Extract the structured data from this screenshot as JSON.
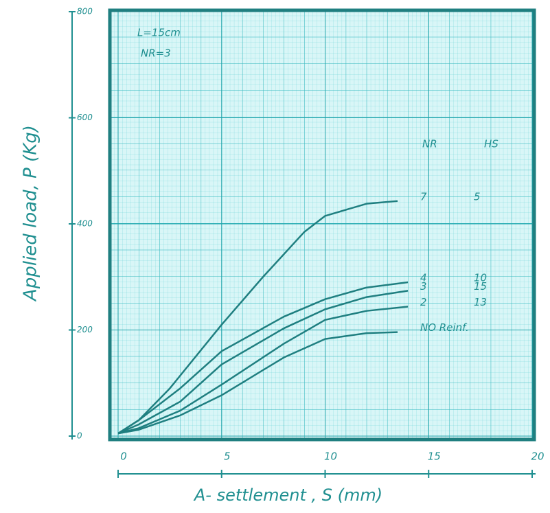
{
  "chart_data": {
    "type": "line",
    "xlabel": "A- settlement , S (mm)",
    "ylabel": "Applied load, P (Kg)",
    "annotations": [
      "L=15cm",
      "NR=3"
    ],
    "legend_headers": [
      "NR",
      "HS"
    ],
    "xlim": [
      0,
      20
    ],
    "xticks": [
      0,
      5,
      10,
      15,
      20
    ],
    "ylim": [
      0,
      800
    ],
    "yticks": [
      0,
      200,
      400,
      600,
      800
    ],
    "grid": true,
    "series": [
      {
        "name": "7",
        "hs": "5",
        "color": "#1f7f80",
        "x": [
          0,
          1,
          2.5,
          5,
          7,
          9,
          10,
          12,
          13.5
        ],
        "values": [
          5,
          30,
          90,
          210,
          300,
          385,
          415,
          438,
          443
        ]
      },
      {
        "name": "4",
        "hs": "10",
        "color": "#1f7f80",
        "x": [
          0,
          1,
          3,
          5,
          8,
          10,
          12,
          14
        ],
        "values": [
          5,
          30,
          90,
          160,
          225,
          258,
          280,
          290
        ]
      },
      {
        "name": "3",
        "hs": "15",
        "color": "#1f7f80",
        "x": [
          0,
          1,
          3,
          5,
          8,
          10,
          12,
          14
        ],
        "values": [
          5,
          22,
          65,
          135,
          203,
          239,
          262,
          274
        ]
      },
      {
        "name": "2",
        "hs": "13",
        "color": "#1f7f80",
        "x": [
          0,
          1,
          3,
          5,
          8,
          10,
          12,
          14
        ],
        "values": [
          5,
          15,
          48,
          97,
          174,
          219,
          236,
          244
        ]
      },
      {
        "name": "NO Reinf.",
        "color": "#1f7f80",
        "x": [
          0,
          1,
          3,
          5,
          8,
          10,
          12,
          13.5
        ],
        "values": [
          5,
          12,
          39,
          77,
          148,
          183,
          194,
          196
        ]
      }
    ]
  }
}
